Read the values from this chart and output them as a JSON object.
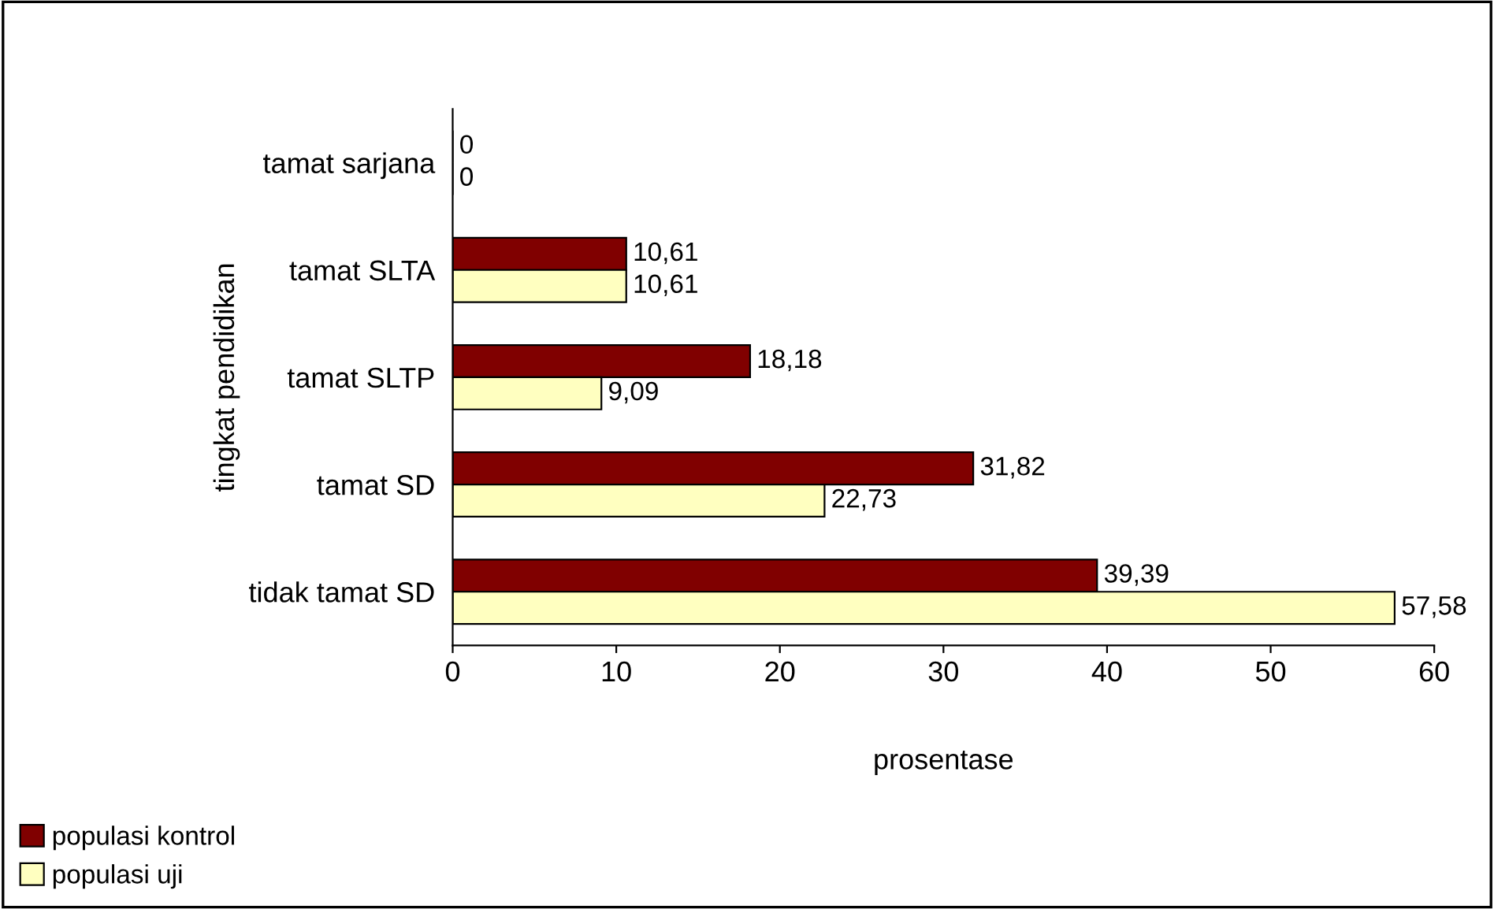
{
  "chart_data": {
    "type": "bar",
    "orientation": "horizontal",
    "xlabel": "prosentase",
    "ylabel": "tingkat pendidikan",
    "categories": [
      "tamat sarjana",
      "tamat SLTA",
      "tamat SLTP",
      "tamat SD",
      "tidak tamat SD"
    ],
    "series": [
      {
        "name": "populasi kontrol",
        "color": "#800000",
        "values": [
          0,
          10.61,
          18.18,
          31.82,
          39.39
        ],
        "value_labels": [
          "0",
          "10,61",
          "18,18",
          "31,82",
          "39,39"
        ]
      },
      {
        "name": "populasi uji",
        "color": "#ffffc0",
        "values": [
          0,
          10.61,
          9.09,
          22.73,
          57.58
        ],
        "value_labels": [
          "0",
          "10,61",
          "9,09",
          "22,73",
          "57,58"
        ]
      }
    ],
    "xlim": [
      0,
      60
    ],
    "xticks": [
      0,
      10,
      20,
      30,
      40,
      50,
      60
    ],
    "grid": false,
    "legend": "bottom left"
  }
}
